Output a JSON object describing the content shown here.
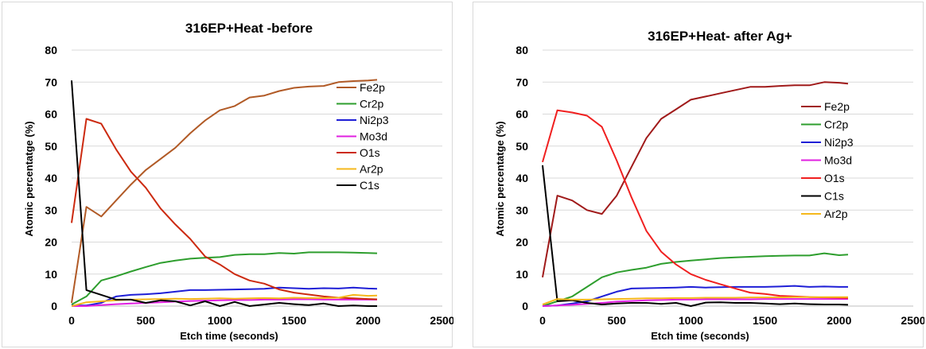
{
  "chart_data": [
    {
      "type": "line",
      "title": "316EP+Heat -before",
      "xlabel": "Etch time (seconds)",
      "ylabel": "Atomic percentatge (%)",
      "xlim": [
        0,
        2500
      ],
      "ylim": [
        0,
        80
      ],
      "xticks": [
        "0",
        "500",
        "1000",
        "1500",
        "2000",
        "2500"
      ],
      "yticks": [
        "0",
        "10",
        "20",
        "30",
        "40",
        "50",
        "60",
        "70",
        "80"
      ],
      "grid": "horizontal",
      "legend": "right",
      "x": [
        0,
        100,
        200,
        300,
        400,
        500,
        600,
        700,
        800,
        900,
        1000,
        1100,
        1200,
        1300,
        1400,
        1500,
        1600,
        1700,
        1800,
        1900,
        2000,
        2060
      ],
      "series": [
        {
          "name": "Fe2p",
          "color": "#b15a26",
          "values": [
            1,
            31,
            28,
            33,
            38,
            42.5,
            46,
            49.5,
            54,
            58,
            61.2,
            62.5,
            65.2,
            65.8,
            67.2,
            68.2,
            68.6,
            68.8,
            70,
            70.3,
            70.5,
            70.7
          ]
        },
        {
          "name": "Cr2p",
          "color": "#2e9e2e",
          "values": [
            0.5,
            3,
            8,
            9.3,
            10.8,
            12.2,
            13.5,
            14.2,
            14.8,
            15.1,
            15.3,
            16,
            16.2,
            16.2,
            16.6,
            16.4,
            16.8,
            16.8,
            16.8,
            16.7,
            16.6,
            16.5
          ]
        },
        {
          "name": "Ni2p3",
          "color": "#1f1fd6",
          "values": [
            0.2,
            0.2,
            1,
            3,
            3.5,
            3.7,
            4,
            4.5,
            5,
            5,
            5.1,
            5.2,
            5.3,
            5.4,
            5.8,
            5.6,
            5.4,
            5.6,
            5.5,
            5.8,
            5.5,
            5.4
          ]
        },
        {
          "name": "Mo3d",
          "color": "#e020e0",
          "values": [
            0,
            0,
            0.3,
            0.6,
            0.8,
            1,
            1.2,
            1.4,
            1.6,
            1.7,
            1.8,
            1.9,
            1.9,
            2,
            2,
            2.1,
            2.1,
            2,
            2,
            2,
            2,
            2
          ]
        },
        {
          "name": "O1s",
          "color": "#cc2a10",
          "values": [
            26,
            58.5,
            57,
            49,
            42,
            37,
            30.5,
            25.5,
            21,
            15.5,
            13,
            10,
            8,
            7,
            5.2,
            4.2,
            3.6,
            3,
            2.6,
            2.4,
            2.2,
            2.1
          ]
        },
        {
          "name": "Ar2p",
          "color": "#f5b81c",
          "values": [
            0,
            1.2,
            1.5,
            1.8,
            2,
            2.1,
            2.2,
            2.3,
            2.2,
            2.3,
            2.4,
            2.3,
            2.4,
            2.5,
            2.4,
            2.6,
            2.5,
            2.5,
            2.6,
            3.5,
            3.2,
            3.3
          ]
        },
        {
          "name": "C1s",
          "color": "#000000",
          "values": [
            70.5,
            5,
            3.5,
            2,
            2,
            1,
            1.8,
            1.5,
            0.2,
            1.5,
            0,
            1.3,
            0,
            0.5,
            1,
            0.6,
            0.3,
            0.8,
            0,
            0.2,
            0,
            0
          ]
        }
      ]
    },
    {
      "type": "line",
      "title": "316EP+Heat- after Ag+",
      "xlabel": "Etch time (seconds)",
      "ylabel": "Atomic percentatge (%)",
      "xlim": [
        0,
        2500
      ],
      "ylim": [
        0,
        80
      ],
      "xticks": [
        "0",
        "500",
        "1000",
        "1500",
        "2000",
        "2500"
      ],
      "yticks": [
        "0",
        "10",
        "20",
        "30",
        "40",
        "50",
        "60",
        "70",
        "80"
      ],
      "grid": "horizontal",
      "legend": "right",
      "x": [
        0,
        100,
        200,
        300,
        400,
        500,
        600,
        700,
        800,
        900,
        1000,
        1100,
        1200,
        1300,
        1400,
        1500,
        1600,
        1700,
        1800,
        1900,
        2000,
        2060
      ],
      "series": [
        {
          "name": "Fe2p",
          "color": "#a01a1a",
          "values": [
            9,
            34.5,
            33,
            30,
            28.8,
            34.5,
            43.5,
            52.5,
            58.5,
            61.5,
            64.5,
            65.5,
            66.5,
            67.5,
            68.5,
            68.5,
            68.8,
            69,
            69,
            70,
            69.8,
            69.5
          ]
        },
        {
          "name": "Cr2p",
          "color": "#2e9e2e",
          "values": [
            0,
            1.5,
            3,
            6,
            9,
            10.5,
            11.3,
            12,
            13.2,
            13.8,
            14.2,
            14.6,
            15,
            15.2,
            15.4,
            15.6,
            15.7,
            15.8,
            15.8,
            16.5,
            15.9,
            16.1
          ]
        },
        {
          "name": "Ni2p3",
          "color": "#1f1fd6",
          "values": [
            0,
            0.2,
            0.8,
            1.5,
            3,
            4.5,
            5.5,
            5.6,
            5.7,
            5.8,
            6,
            5.8,
            5.9,
            6,
            6,
            6,
            6.1,
            6.3,
            6,
            6.1,
            6,
            6
          ]
        },
        {
          "name": "Mo3d",
          "color": "#e020e0",
          "values": [
            0,
            0.2,
            0.4,
            0.7,
            1,
            1.4,
            1.6,
            1.8,
            1.9,
            2,
            2,
            2.1,
            2.1,
            2.1,
            2.1,
            2.2,
            2.2,
            2.2,
            2.2,
            2.2,
            2.2,
            2.2
          ]
        },
        {
          "name": "O1s",
          "color": "#f02020",
          "values": [
            45,
            61.2,
            60.5,
            59.5,
            56,
            45.5,
            34,
            23.5,
            17,
            13,
            10,
            8.2,
            6.8,
            5.5,
            4.2,
            3.8,
            3.2,
            3,
            2.8,
            2.7,
            2.6,
            2.5
          ]
        },
        {
          "name": "C1s",
          "color": "#000000",
          "values": [
            44,
            1.5,
            1.8,
            1,
            0.5,
            0.8,
            1,
            1,
            0.7,
            1,
            0,
            1.1,
            1.2,
            1,
            1,
            0.8,
            0.6,
            0.8,
            0.6,
            0.5,
            0.5,
            0.4
          ]
        },
        {
          "name": "Ar2p",
          "color": "#f5b81c",
          "values": [
            0.5,
            2.2,
            2,
            2,
            2.1,
            2.2,
            2.3,
            2.4,
            2.4,
            2.5,
            2.5,
            2.6,
            2.6,
            2.6,
            2.7,
            2.7,
            2.7,
            2.8,
            2.8,
            2.8,
            2.8,
            2.8
          ]
        }
      ]
    }
  ]
}
